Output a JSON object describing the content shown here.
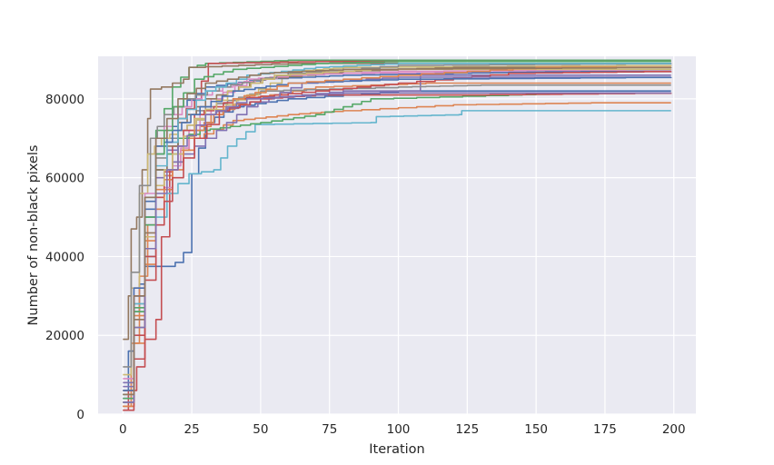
{
  "chart_data": {
    "type": "line",
    "xlabel": "Iteration",
    "ylabel": "Number of non-black pixels",
    "xlim": [
      -9,
      208
    ],
    "ylim": [
      0,
      90800
    ],
    "xticks": [
      0,
      25,
      50,
      75,
      100,
      125,
      150,
      175,
      200
    ],
    "yticks": [
      0,
      20000,
      40000,
      60000,
      80000
    ],
    "grid": true,
    "background": "#eaeaf2",
    "palette": [
      "#4c72b0",
      "#dd8452",
      "#55a868",
      "#c44e52",
      "#8172b3",
      "#937860",
      "#da8bc3",
      "#8c8c8c",
      "#ccb974",
      "#64b5cd"
    ],
    "series": [
      {
        "color": "#4c72b0",
        "points": [
          [
            0,
            6000
          ],
          [
            2,
            16000
          ],
          [
            4,
            26000
          ],
          [
            6,
            33000
          ],
          [
            8,
            37500
          ],
          [
            16,
            37500
          ],
          [
            19,
            38500
          ],
          [
            22,
            41000
          ],
          [
            24,
            41000
          ],
          [
            25,
            61000
          ],
          [
            30,
            74000
          ],
          [
            40,
            78000
          ],
          [
            60,
            80000
          ],
          [
            100,
            82000
          ],
          [
            199,
            82000
          ]
        ]
      },
      {
        "color": "#dd8452",
        "points": [
          [
            0,
            2000
          ],
          [
            3,
            18000
          ],
          [
            6,
            35000
          ],
          [
            9,
            48000
          ],
          [
            12,
            57000
          ],
          [
            18,
            64000
          ],
          [
            24,
            70000
          ],
          [
            32,
            76000
          ],
          [
            45,
            80000
          ],
          [
            70,
            83000
          ],
          [
            110,
            84000
          ],
          [
            199,
            84000
          ]
        ]
      },
      {
        "color": "#55a868",
        "points": [
          [
            0,
            3000
          ],
          [
            4,
            27000
          ],
          [
            8,
            55000
          ],
          [
            12,
            72000
          ],
          [
            18,
            83000
          ],
          [
            24,
            88000
          ],
          [
            30,
            89000
          ],
          [
            60,
            89800
          ],
          [
            199,
            89800
          ]
        ]
      },
      {
        "color": "#c44e52",
        "points": [
          [
            0,
            1000
          ],
          [
            2,
            6000
          ],
          [
            5,
            12000
          ],
          [
            8,
            19000
          ],
          [
            10,
            19000
          ],
          [
            12,
            24000
          ],
          [
            14,
            45000
          ],
          [
            17,
            62000
          ],
          [
            20,
            75000
          ],
          [
            26,
            80000
          ],
          [
            31,
            89000
          ],
          [
            70,
            89500
          ],
          [
            199,
            89500
          ]
        ]
      },
      {
        "color": "#8172b3",
        "points": [
          [
            0,
            8000
          ],
          [
            4,
            30000
          ],
          [
            8,
            48000
          ],
          [
            12,
            62000
          ],
          [
            20,
            72000
          ],
          [
            30,
            76000
          ],
          [
            50,
            80000
          ],
          [
            80,
            82000
          ],
          [
            107,
            82000
          ],
          [
            108,
            86000
          ],
          [
            199,
            86000
          ]
        ]
      },
      {
        "color": "#937860",
        "points": [
          [
            0,
            19000
          ],
          [
            2,
            30000
          ],
          [
            3,
            47000
          ],
          [
            5,
            50000
          ],
          [
            7,
            62000
          ],
          [
            9,
            75000
          ],
          [
            10,
            82500
          ],
          [
            14,
            83000
          ],
          [
            22,
            85000
          ],
          [
            24,
            88000
          ],
          [
            60,
            89000
          ],
          [
            199,
            89000
          ]
        ]
      },
      {
        "color": "#da8bc3",
        "points": [
          [
            0,
            4000
          ],
          [
            4,
            24000
          ],
          [
            8,
            40000
          ],
          [
            12,
            52000
          ],
          [
            18,
            63000
          ],
          [
            24,
            72000
          ],
          [
            32,
            80000
          ],
          [
            45,
            85000
          ],
          [
            70,
            86500
          ],
          [
            199,
            87000
          ]
        ]
      },
      {
        "color": "#8c8c8c",
        "points": [
          [
            0,
            5000
          ],
          [
            4,
            28000
          ],
          [
            8,
            50000
          ],
          [
            12,
            65000
          ],
          [
            20,
            75000
          ],
          [
            30,
            78000
          ],
          [
            50,
            82000
          ],
          [
            100,
            83000
          ],
          [
            130,
            83500
          ],
          [
            199,
            83500
          ]
        ]
      },
      {
        "color": "#ccb974",
        "points": [
          [
            0,
            10000
          ],
          [
            3,
            32000
          ],
          [
            6,
            56000
          ],
          [
            9,
            66000
          ],
          [
            14,
            70000
          ],
          [
            20,
            72000
          ],
          [
            30,
            76000
          ],
          [
            45,
            81000
          ],
          [
            62,
            87000
          ],
          [
            80,
            88000
          ],
          [
            199,
            88500
          ]
        ]
      },
      {
        "color": "#64b5cd",
        "points": [
          [
            0,
            3000
          ],
          [
            4,
            22000
          ],
          [
            8,
            40000
          ],
          [
            12,
            50000
          ],
          [
            16,
            56000
          ],
          [
            24,
            61000
          ],
          [
            33,
            62000
          ],
          [
            38,
            68000
          ],
          [
            48,
            73500
          ],
          [
            90,
            74000
          ],
          [
            92,
            75500
          ],
          [
            122,
            76000
          ],
          [
            123,
            77000
          ],
          [
            199,
            77000
          ]
        ]
      },
      {
        "color": "#4c72b0",
        "points": [
          [
            0,
            4000
          ],
          [
            4,
            30000
          ],
          [
            8,
            52000
          ],
          [
            12,
            68000
          ],
          [
            20,
            78000
          ],
          [
            30,
            83000
          ],
          [
            50,
            85000
          ],
          [
            80,
            86000
          ],
          [
            120,
            86500
          ],
          [
            160,
            87000
          ],
          [
            199,
            87000
          ]
        ]
      },
      {
        "color": "#dd8452",
        "points": [
          [
            0,
            6000
          ],
          [
            4,
            25000
          ],
          [
            8,
            44000
          ],
          [
            12,
            55000
          ],
          [
            18,
            64000
          ],
          [
            26,
            70000
          ],
          [
            40,
            74500
          ],
          [
            60,
            76000
          ],
          [
            80,
            77000
          ],
          [
            120,
            78500
          ],
          [
            170,
            79000
          ],
          [
            199,
            79000
          ]
        ]
      },
      {
        "color": "#55a868",
        "points": [
          [
            0,
            5000
          ],
          [
            4,
            26000
          ],
          [
            8,
            48000
          ],
          [
            12,
            62000
          ],
          [
            20,
            70000
          ],
          [
            28,
            72000
          ],
          [
            50,
            74000
          ],
          [
            70,
            76000
          ],
          [
            80,
            78000
          ],
          [
            90,
            80000
          ],
          [
            140,
            81000
          ],
          [
            170,
            81500
          ],
          [
            199,
            81500
          ]
        ]
      },
      {
        "color": "#c44e52",
        "points": [
          [
            0,
            2000
          ],
          [
            4,
            20000
          ],
          [
            8,
            40000
          ],
          [
            12,
            55000
          ],
          [
            18,
            68000
          ],
          [
            26,
            76000
          ],
          [
            40,
            80000
          ],
          [
            70,
            82000
          ],
          [
            100,
            84000
          ],
          [
            140,
            86500
          ],
          [
            199,
            87000
          ]
        ]
      },
      {
        "color": "#8172b3",
        "points": [
          [
            0,
            7000
          ],
          [
            4,
            30000
          ],
          [
            8,
            50000
          ],
          [
            12,
            60000
          ],
          [
            18,
            64000
          ],
          [
            26,
            68000
          ],
          [
            34,
            72000
          ],
          [
            45,
            78000
          ],
          [
            65,
            84000
          ],
          [
            100,
            85500
          ],
          [
            199,
            85500
          ]
        ]
      },
      {
        "color": "#937860",
        "points": [
          [
            0,
            3000
          ],
          [
            4,
            24000
          ],
          [
            8,
            46000
          ],
          [
            12,
            62000
          ],
          [
            20,
            74000
          ],
          [
            30,
            80000
          ],
          [
            50,
            85000
          ],
          [
            80,
            87000
          ],
          [
            120,
            88000
          ],
          [
            199,
            88000
          ]
        ]
      },
      {
        "color": "#da8bc3",
        "points": [
          [
            0,
            9000
          ],
          [
            4,
            32000
          ],
          [
            8,
            56000
          ],
          [
            12,
            70000
          ],
          [
            18,
            76000
          ],
          [
            25,
            80000
          ],
          [
            40,
            84000
          ],
          [
            60,
            86000
          ],
          [
            100,
            87000
          ],
          [
            199,
            87500
          ]
        ]
      },
      {
        "color": "#8c8c8c",
        "points": [
          [
            0,
            12000
          ],
          [
            3,
            36000
          ],
          [
            6,
            58000
          ],
          [
            10,
            70000
          ],
          [
            15,
            76000
          ],
          [
            22,
            80000
          ],
          [
            35,
            83000
          ],
          [
            60,
            86500
          ],
          [
            100,
            88500
          ],
          [
            199,
            89000
          ]
        ]
      },
      {
        "color": "#ccb974",
        "points": [
          [
            0,
            2000
          ],
          [
            4,
            22000
          ],
          [
            8,
            45000
          ],
          [
            12,
            58000
          ],
          [
            18,
            66000
          ],
          [
            26,
            75000
          ],
          [
            38,
            82000
          ],
          [
            55,
            86000
          ],
          [
            90,
            87500
          ],
          [
            199,
            87500
          ]
        ]
      },
      {
        "color": "#64b5cd",
        "points": [
          [
            0,
            5000
          ],
          [
            4,
            28000
          ],
          [
            8,
            50000
          ],
          [
            12,
            63000
          ],
          [
            20,
            75000
          ],
          [
            30,
            82000
          ],
          [
            45,
            86000
          ],
          [
            70,
            88000
          ],
          [
            100,
            89000
          ],
          [
            199,
            89000
          ]
        ]
      },
      {
        "color": "#4c72b0",
        "points": [
          [
            0,
            6000
          ],
          [
            4,
            32000
          ],
          [
            8,
            54000
          ],
          [
            12,
            66000
          ],
          [
            18,
            72000
          ],
          [
            28,
            78000
          ],
          [
            40,
            82000
          ],
          [
            60,
            84000
          ],
          [
            100,
            85000
          ],
          [
            199,
            85500
          ]
        ]
      },
      {
        "color": "#dd8452",
        "points": [
          [
            0,
            2000
          ],
          [
            4,
            18000
          ],
          [
            8,
            38000
          ],
          [
            12,
            52000
          ],
          [
            18,
            62000
          ],
          [
            26,
            72000
          ],
          [
            40,
            80000
          ],
          [
            60,
            84000
          ],
          [
            100,
            86000
          ],
          [
            150,
            88000
          ],
          [
            199,
            88000
          ]
        ]
      },
      {
        "color": "#55a868",
        "points": [
          [
            0,
            4000
          ],
          [
            4,
            26000
          ],
          [
            8,
            50000
          ],
          [
            12,
            66000
          ],
          [
            18,
            78000
          ],
          [
            26,
            85000
          ],
          [
            40,
            87500
          ],
          [
            70,
            89000
          ],
          [
            100,
            89500
          ],
          [
            199,
            89500
          ]
        ]
      },
      {
        "color": "#c44e52",
        "points": [
          [
            0,
            1000
          ],
          [
            4,
            14000
          ],
          [
            8,
            34000
          ],
          [
            12,
            48000
          ],
          [
            18,
            60000
          ],
          [
            26,
            70000
          ],
          [
            35,
            77000
          ],
          [
            50,
            80000
          ],
          [
            70,
            81000
          ],
          [
            120,
            81000
          ],
          [
            199,
            81500
          ]
        ]
      },
      {
        "color": "#8172b3",
        "points": [
          [
            0,
            3000
          ],
          [
            4,
            22000
          ],
          [
            8,
            42000
          ],
          [
            12,
            56000
          ],
          [
            20,
            68000
          ],
          [
            30,
            76000
          ],
          [
            45,
            80000
          ],
          [
            80,
            81500
          ],
          [
            199,
            81500
          ]
        ]
      },
      {
        "color": "#937860",
        "points": [
          [
            0,
            5000
          ],
          [
            4,
            30000
          ],
          [
            8,
            55000
          ],
          [
            12,
            70000
          ],
          [
            20,
            80000
          ],
          [
            30,
            84000
          ],
          [
            50,
            86500
          ],
          [
            80,
            87500
          ],
          [
            199,
            88000
          ]
        ]
      }
    ]
  }
}
